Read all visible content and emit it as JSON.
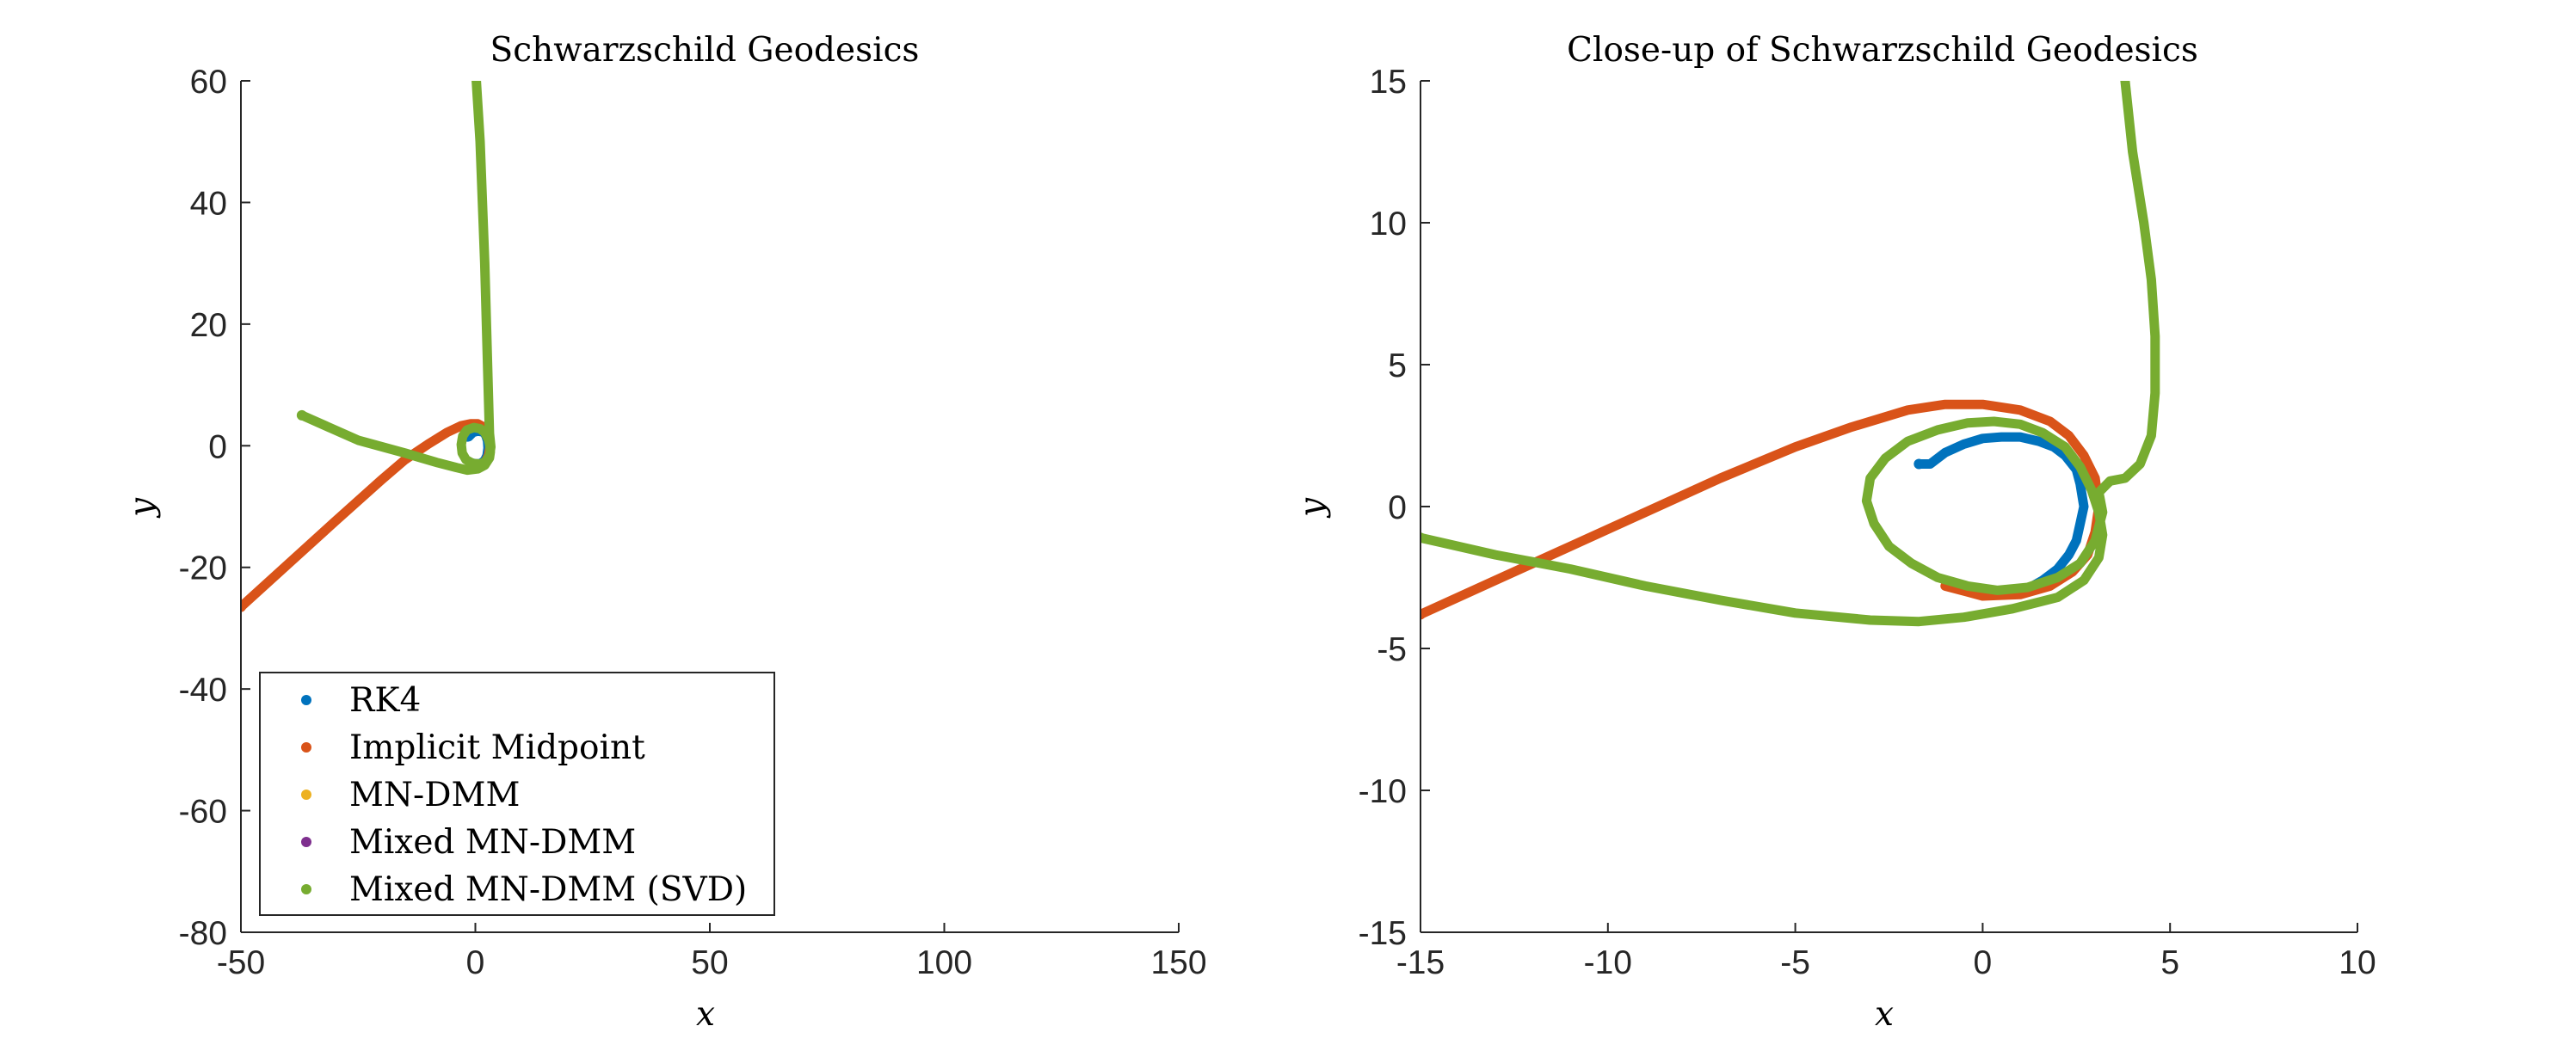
{
  "chart_data": [
    {
      "type": "line",
      "title": "Schwarzschild Geodesics",
      "xlabel": "x",
      "ylabel": "y",
      "xlim": [
        -50,
        150
      ],
      "ylim": [
        -80,
        60
      ],
      "xticks": [
        -50,
        0,
        50,
        100,
        150
      ],
      "yticks": [
        -80,
        -60,
        -40,
        -20,
        0,
        20,
        40,
        60
      ],
      "grid": false,
      "legend": "bottom-left",
      "series": [
        {
          "name": "RK4",
          "color": "#0072BD",
          "x": [
            -1.7,
            -1.4,
            -0.5,
            0.5,
            1.5,
            2.2,
            2.6,
            2.7,
            2.5,
            2.0,
            1.2,
            0.2,
            -0.9
          ],
          "y": [
            1.5,
            1.5,
            2.2,
            2.4,
            2.3,
            1.8,
            0.8,
            -0.4,
            -1.6,
            -2.4,
            -2.9,
            -3.0,
            -2.8
          ]
        },
        {
          "name": "Implicit Midpoint",
          "color": "#D95319",
          "x": [
            -50,
            -40,
            -30,
            -20,
            -15,
            -10,
            -6,
            -3,
            -1,
            0.5,
            1.5,
            2.5,
            3.0,
            3.1,
            2.8,
            2.2,
            1.3,
            0.2,
            -1.0
          ],
          "y": [
            -26.5,
            -19.5,
            -12.5,
            -5.6,
            -2.3,
            0.3,
            2.2,
            3.3,
            3.6,
            3.6,
            3.2,
            2.2,
            1.0,
            -0.3,
            -1.6,
            -2.5,
            -3.0,
            -3.1,
            -2.8
          ]
        },
        {
          "name": "MN-DMM",
          "color": "#EDB120",
          "x": [],
          "y": []
        },
        {
          "name": "Mixed MN-DMM",
          "color": "#7E2F8E",
          "x": [],
          "y": []
        },
        {
          "name": "Mixed MN-DMM (SVD)",
          "color": "#77AC30",
          "x": [
            -37,
            -25,
            -15,
            -12,
            -8,
            -4,
            -1.7,
            0.5,
            2,
            3,
            3.2,
            3.1,
            2.8,
            2.0,
            1.0,
            -0.3,
            -1.8,
            -2.7,
            -3.0,
            -2.8,
            -2.0,
            -0.6,
            1.0,
            2.2,
            3.0,
            3.3,
            3.0,
            2.0,
            1.0,
            0.2
          ],
          "y": [
            5.0,
            0.9,
            -1.2,
            -1.9,
            -2.8,
            -3.6,
            -4.0,
            -3.8,
            -3.2,
            -2.0,
            -1.0,
            0.0,
            1.0,
            2.2,
            2.8,
            3.0,
            2.6,
            1.6,
            0.2,
            -1.2,
            -2.3,
            -2.9,
            -3.0,
            -2.6,
            -1.6,
            -0.2,
            2.0,
            30,
            50,
            60
          ]
        }
      ]
    },
    {
      "type": "line",
      "title": "Close-up of Schwarzschild Geodesics",
      "xlabel": "x",
      "ylabel": "y",
      "xlim": [
        -15,
        10
      ],
      "ylim": [
        -15,
        15
      ],
      "xticks": [
        -15,
        -10,
        -5,
        0,
        5,
        10
      ],
      "yticks": [
        -15,
        -10,
        -5,
        0,
        5,
        10,
        15
      ],
      "grid": false,
      "series": [
        {
          "name": "RK4",
          "color": "#0072BD",
          "x": [
            -1.7,
            -1.4,
            -1.0,
            -0.5,
            0.0,
            0.5,
            1.0,
            1.5,
            1.9,
            2.2,
            2.5,
            2.6,
            2.7,
            2.6,
            2.5,
            2.3,
            2.0,
            1.6,
            1.2,
            0.7,
            0.2,
            -0.4,
            -0.9
          ],
          "y": [
            1.5,
            1.5,
            1.9,
            2.2,
            2.4,
            2.45,
            2.45,
            2.3,
            2.1,
            1.8,
            1.3,
            0.8,
            0.0,
            -0.6,
            -1.2,
            -1.7,
            -2.2,
            -2.6,
            -2.9,
            -3.05,
            -3.0,
            -2.9,
            -2.8
          ]
        },
        {
          "name": "Implicit Midpoint",
          "color": "#D95319",
          "x": [
            -15,
            -13,
            -11,
            -9,
            -7,
            -5,
            -3.5,
            -2,
            -1,
            0,
            1,
            1.8,
            2.3,
            2.7,
            3.0,
            3.1,
            3.0,
            2.8,
            2.4,
            1.8,
            1.0,
            0.0,
            -1.0
          ],
          "y": [
            -3.8,
            -2.6,
            -1.4,
            -0.2,
            1.0,
            2.1,
            2.8,
            3.4,
            3.6,
            3.6,
            3.4,
            3.0,
            2.5,
            1.8,
            1.0,
            0.0,
            -0.9,
            -1.7,
            -2.3,
            -2.8,
            -3.1,
            -3.15,
            -2.8
          ]
        },
        {
          "name": "MN-DMM",
          "color": "#EDB120",
          "x": [],
          "y": []
        },
        {
          "name": "Mixed MN-DMM",
          "color": "#7E2F8E",
          "x": [],
          "y": []
        },
        {
          "name": "Mixed MN-DMM (SVD)",
          "color": "#77AC30",
          "x": [
            -15,
            -13,
            -11,
            -9,
            -7,
            -5,
            -3,
            -1.7,
            -0.5,
            0.8,
            2.0,
            2.7,
            3.1,
            3.2,
            3.1,
            2.9,
            2.6,
            2.2,
            1.6,
            1.0,
            0.3,
            -0.4,
            -1.2,
            -2.0,
            -2.6,
            -3.0,
            -3.1,
            -2.9,
            -2.5,
            -1.9,
            -1.2,
            -0.4,
            0.4,
            1.2,
            2.0,
            2.6,
            3.0,
            3.2,
            3.1,
            3.4,
            3.8,
            4.2,
            4.5,
            4.6,
            4.6,
            4.5,
            4.3,
            4.0,
            3.8
          ],
          "y": [
            -1.1,
            -1.7,
            -2.2,
            -2.8,
            -3.3,
            -3.75,
            -4.0,
            -4.05,
            -3.9,
            -3.6,
            -3.2,
            -2.6,
            -1.8,
            -1.0,
            -0.2,
            0.6,
            1.4,
            2.1,
            2.6,
            2.9,
            3.0,
            2.95,
            2.7,
            2.3,
            1.7,
            1.0,
            0.2,
            -0.6,
            -1.4,
            -2.0,
            -2.5,
            -2.8,
            -2.95,
            -2.85,
            -2.5,
            -2.0,
            -1.2,
            -0.2,
            0.5,
            0.9,
            1.0,
            1.5,
            2.5,
            4.0,
            6.0,
            8.0,
            10.0,
            12.5,
            15.0
          ]
        }
      ]
    }
  ]
}
